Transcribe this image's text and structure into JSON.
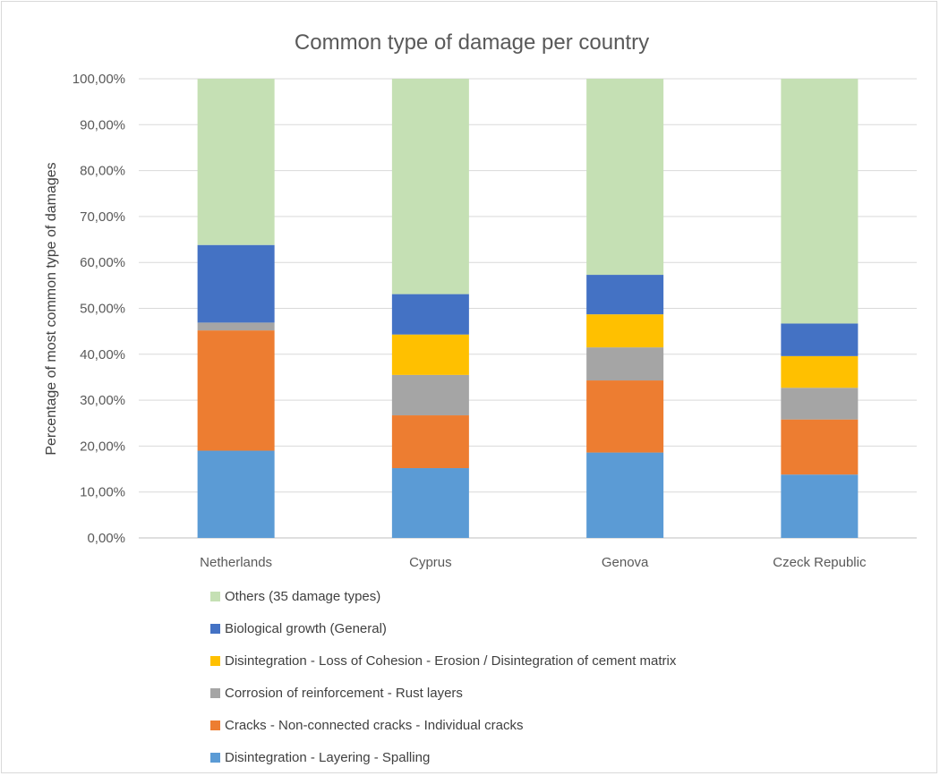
{
  "chart_data": {
    "type": "bar",
    "stacked": true,
    "title": "Common type of damage per country",
    "xlabel": "",
    "ylabel": "Percentage of most common type of damages",
    "ylim": [
      0,
      100
    ],
    "yticks": [
      "0,00%",
      "10,00%",
      "20,00%",
      "30,00%",
      "40,00%",
      "50,00%",
      "60,00%",
      "70,00%",
      "80,00%",
      "90,00%",
      "100,00%"
    ],
    "grid": true,
    "legend_position": "bottom",
    "categories": [
      "Netherlands",
      "Cyprus",
      "Genova",
      "Czeck Republic"
    ],
    "series": [
      {
        "name": "Disintegration - Layering - Spalling",
        "color": "#5b9bd5",
        "values": [
          19.0,
          15.2,
          18.6,
          13.8
        ]
      },
      {
        "name": "Cracks - Non-connected cracks - Individual cracks",
        "color": "#ed7d31",
        "values": [
          26.2,
          11.5,
          15.7,
          12.0
        ]
      },
      {
        "name": "Corrosion of reinforcement - Rust layers",
        "color": "#a5a5a5",
        "values": [
          1.7,
          8.8,
          7.2,
          6.9
        ]
      },
      {
        "name": "Disintegration - Loss of Cohesion - Erosion / Disintegration of cement matrix",
        "color": "#ffc000",
        "values": [
          0.0,
          8.8,
          7.2,
          6.9
        ]
      },
      {
        "name": "Biological growth (General)",
        "color": "#4472c4",
        "values": [
          16.9,
          8.8,
          8.6,
          7.1
        ]
      },
      {
        "name": "Others (35 damage types)",
        "color": "#c5e0b4",
        "values": [
          36.2,
          46.9,
          42.7,
          53.3
        ]
      }
    ]
  }
}
